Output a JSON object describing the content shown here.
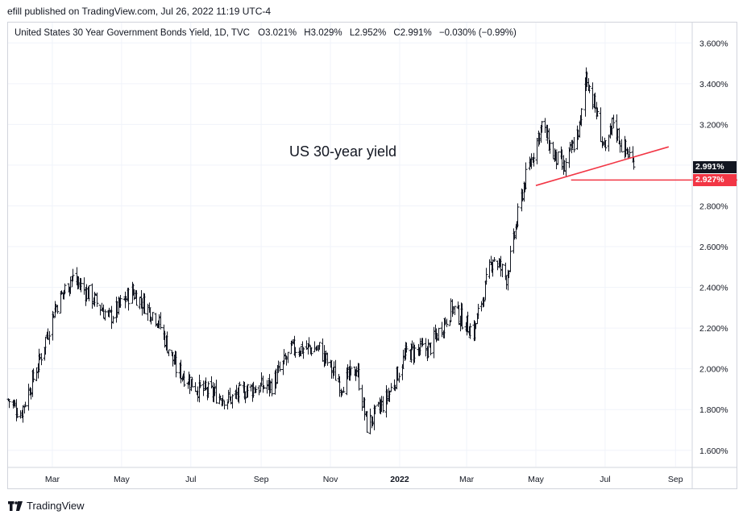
{
  "header": {
    "publisher": "efill published on TradingView.com, Jul 26, 2022 11:19 UTC-4"
  },
  "legend": {
    "symbol": "United States 30 Year Government Bonds Yield, 1D, TVC",
    "open": "O3.021%",
    "high": "H3.029%",
    "low": "L2.952%",
    "close": "C2.991%",
    "change": "−0.030% (−0.99%)"
  },
  "annotation": "US 30-year yield",
  "price_tags": {
    "last": "2.991%",
    "support": "2.927%"
  },
  "footer": {
    "brand": "TradingView"
  },
  "colors": {
    "bars": "#131722",
    "trendline": "#f23645",
    "last_tag": "#131722",
    "support_tag": "#f23645",
    "grid": "#f0f3fa"
  },
  "chart_data": {
    "type": "ohlc_bar",
    "series_name": "United States 30 Year Government Bonds Yield",
    "timeframe": "1D",
    "x_range": [
      "2021-01-21",
      "2022-09-15"
    ],
    "ylim": [
      1.52,
      3.7
    ],
    "y_ticks": [
      "1.600%",
      "1.800%",
      "2.000%",
      "2.200%",
      "2.400%",
      "2.600%",
      "2.800%",
      "3.000%",
      "3.200%",
      "3.400%",
      "3.600%"
    ],
    "x_ticks": [
      {
        "label": "Mar",
        "date": "2021-03-01"
      },
      {
        "label": "May",
        "date": "2021-05-01"
      },
      {
        "label": "Jul",
        "date": "2021-07-01"
      },
      {
        "label": "Sep",
        "date": "2021-09-01"
      },
      {
        "label": "Nov",
        "date": "2021-11-01"
      },
      {
        "label": "2022",
        "date": "2022-01-01"
      },
      {
        "label": "Mar",
        "date": "2022-03-01"
      },
      {
        "label": "May",
        "date": "2022-05-01"
      },
      {
        "label": "Jul",
        "date": "2022-07-01"
      },
      {
        "label": "Sep",
        "date": "2022-09-01"
      }
    ],
    "trend_anchors": [
      {
        "date": "2021-01-21",
        "close": 1.85
      },
      {
        "date": "2021-02-01",
        "close": 1.78
      },
      {
        "date": "2021-02-18",
        "close": 2.05
      },
      {
        "date": "2021-03-03",
        "close": 2.3
      },
      {
        "date": "2021-03-18",
        "close": 2.45
      },
      {
        "date": "2021-04-05",
        "close": 2.35
      },
      {
        "date": "2021-04-20",
        "close": 2.25
      },
      {
        "date": "2021-05-10",
        "close": 2.38
      },
      {
        "date": "2021-06-01",
        "close": 2.25
      },
      {
        "date": "2021-06-18",
        "close": 2.0
      },
      {
        "date": "2021-07-08",
        "close": 1.9
      },
      {
        "date": "2021-07-20",
        "close": 1.88
      },
      {
        "date": "2021-08-04",
        "close": 1.85
      },
      {
        "date": "2021-08-20",
        "close": 1.9
      },
      {
        "date": "2021-09-10",
        "close": 1.92
      },
      {
        "date": "2021-09-28",
        "close": 2.1
      },
      {
        "date": "2021-10-22",
        "close": 2.1
      },
      {
        "date": "2021-11-10",
        "close": 1.92
      },
      {
        "date": "2021-11-24",
        "close": 2.0
      },
      {
        "date": "2021-12-03",
        "close": 1.72
      },
      {
        "date": "2021-12-20",
        "close": 1.85
      },
      {
        "date": "2022-01-07",
        "close": 2.08
      },
      {
        "date": "2022-01-27",
        "close": 2.1
      },
      {
        "date": "2022-02-16",
        "close": 2.3
      },
      {
        "date": "2022-03-07",
        "close": 2.18
      },
      {
        "date": "2022-03-24",
        "close": 2.55
      },
      {
        "date": "2022-04-05",
        "close": 2.45
      },
      {
        "date": "2022-04-20",
        "close": 2.9
      },
      {
        "date": "2022-05-06",
        "close": 3.2
      },
      {
        "date": "2022-05-16",
        "close": 3.05
      },
      {
        "date": "2022-05-26",
        "close": 2.98
      },
      {
        "date": "2022-06-09",
        "close": 3.2
      },
      {
        "date": "2022-06-14",
        "close": 3.45
      },
      {
        "date": "2022-06-22",
        "close": 3.28
      },
      {
        "date": "2022-07-01",
        "close": 3.05
      },
      {
        "date": "2022-07-08",
        "close": 3.22
      },
      {
        "date": "2022-07-15",
        "close": 3.1
      },
      {
        "date": "2022-07-22",
        "close": 3.05
      },
      {
        "date": "2022-07-26",
        "close": 2.991
      }
    ],
    "annotations": {
      "trendline": {
        "from": {
          "date": "2022-05-01",
          "value": 2.9
        },
        "to": {
          "date": "2022-08-26",
          "value": 3.09
        }
      },
      "support_line": {
        "from": {
          "date": "2022-06-01",
          "value": 2.927
        },
        "level": 2.927
      }
    }
  }
}
